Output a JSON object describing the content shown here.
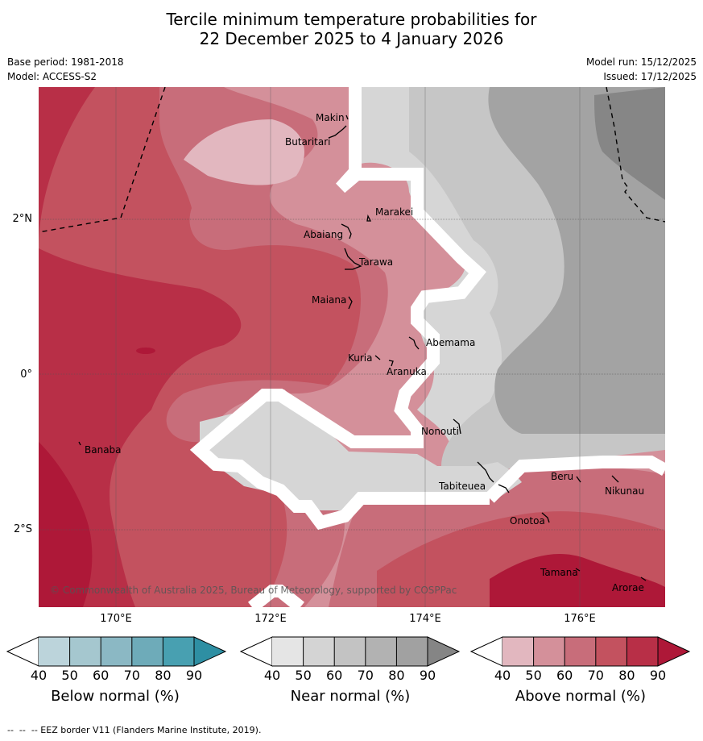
{
  "title": {
    "line1": "Tercile minimum temperature probabilities for",
    "line2": "22 December 2025 to 4 January 2026"
  },
  "meta": {
    "base_period": "Base period: 1981-2018",
    "model": "Model: ACCESS-S2",
    "model_run": "Model run: 15/12/2025",
    "issued": "Issued: 17/12/2025"
  },
  "axes": {
    "latitude_labels": [
      "2°N",
      "0°",
      "2°S"
    ],
    "longitude_labels": [
      "170°E",
      "172°E",
      "174°E",
      "176°E"
    ]
  },
  "places": [
    {
      "name": "Makin"
    },
    {
      "name": "Butaritari"
    },
    {
      "name": "Marakei"
    },
    {
      "name": "Abaiang"
    },
    {
      "name": "Tarawa"
    },
    {
      "name": "Maiana"
    },
    {
      "name": "Abemama"
    },
    {
      "name": "Kuria"
    },
    {
      "name": "Aranuka"
    },
    {
      "name": "Nonouti"
    },
    {
      "name": "Banaba"
    },
    {
      "name": "Tabiteuea"
    },
    {
      "name": "Beru"
    },
    {
      "name": "Nikunau"
    },
    {
      "name": "Onotoa"
    },
    {
      "name": "Tamana"
    },
    {
      "name": "Arorae"
    }
  ],
  "copyright": "© Commonwealth of Australia 2025, Bureau of Meteorology, supported by COSPPac",
  "colorbars": [
    {
      "label": "Below normal (%)",
      "ticks": [
        "40",
        "50",
        "60",
        "70",
        "80",
        "90"
      ],
      "colors": [
        "#ffffff",
        "#bcd4db",
        "#a5c7cf",
        "#8bb8c4",
        "#6eabb9",
        "#48a0b1",
        "#2e8fa3"
      ]
    },
    {
      "label": "Near normal (%)",
      "ticks": [
        "40",
        "50",
        "60",
        "70",
        "80",
        "90"
      ],
      "colors": [
        "#ffffff",
        "#e5e5e5",
        "#d4d4d4",
        "#c3c3c3",
        "#b2b2b2",
        "#a1a1a1",
        "#858585"
      ]
    },
    {
      "label": "Above normal (%)",
      "ticks": [
        "40",
        "50",
        "60",
        "70",
        "80",
        "90"
      ],
      "colors": [
        "#ffffff",
        "#e2b7bf",
        "#d4909a",
        "#c86d7a",
        "#c3525f",
        "#b82f47",
        "#ae1838"
      ]
    }
  ],
  "footer": "--  --  -- EEZ border V11 (Flanders Marine Institute, 2019).",
  "map_colors": {
    "above_50": "#d4909a",
    "above_60": "#c86d7a",
    "above_70": "#c3525f",
    "above_80": "#b82f47",
    "above_90": "#ae1838",
    "near_40": "#d6d6d6",
    "near_50": "#c6c6c6",
    "near_60": "#a3a3a3",
    "near_70": "#868686"
  }
}
